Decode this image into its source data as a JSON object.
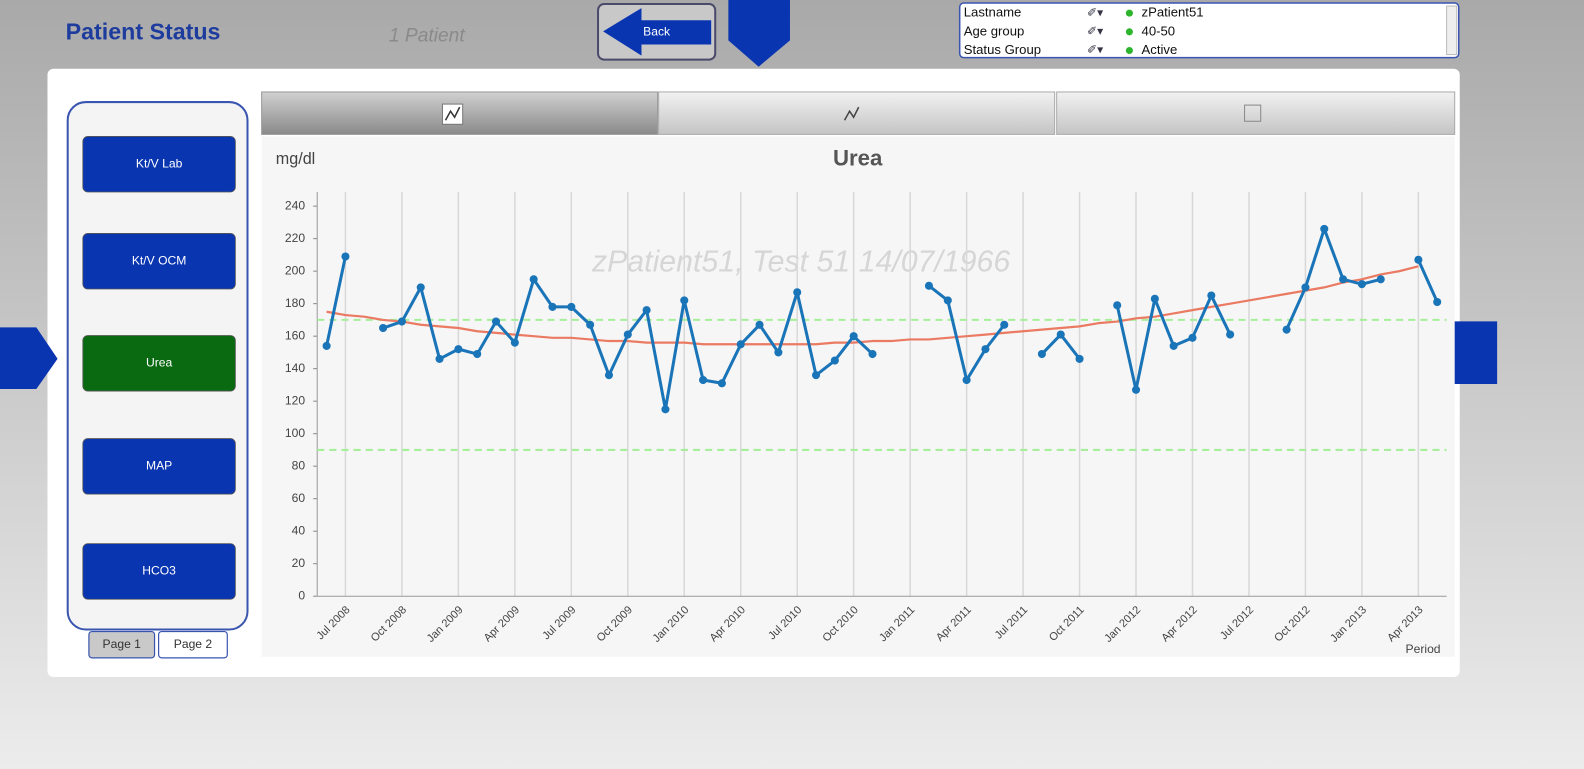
{
  "header": {
    "title": "Patient Status",
    "patient_count": "1 Patient",
    "back": "Back"
  },
  "selections": [
    {
      "field": "Lastname",
      "value": "zPatient51"
    },
    {
      "field": "Age group",
      "value": "40-50"
    },
    {
      "field": "Status Group",
      "value": "Active"
    }
  ],
  "nav": {
    "buttons": [
      "Kt/V Lab",
      "Kt/V OCM",
      "Urea",
      "MAP",
      "HCO3"
    ],
    "active": 2,
    "pages": [
      "Page 1",
      "Page 2"
    ]
  },
  "chart_data": {
    "type": "line",
    "title": "Urea",
    "y_label": "mg/dl",
    "x_label": "Period",
    "watermark": "zPatient51, Test 51 14/07/1966",
    "categories": [
      null,
      "Jul 2008",
      null,
      null,
      "Oct 2008",
      null,
      null,
      "Jan 2009",
      null,
      null,
      "Apr 2009",
      null,
      null,
      "Jul 2009",
      null,
      null,
      "Oct 2009",
      null,
      null,
      "Jan 2010",
      null,
      null,
      "Apr 2010",
      null,
      null,
      "Jul 2010",
      null,
      null,
      "Oct 2010",
      null,
      null,
      "Jan 2011",
      null,
      null,
      "Apr 2011",
      null,
      null,
      "Jul 2011",
      null,
      null,
      "Oct 2011",
      null,
      null,
      "Jan 2012",
      null,
      null,
      "Apr 2012",
      null,
      null,
      "Jul 2012",
      null,
      null,
      "Oct 2012",
      null,
      null,
      "Jan 2013",
      null,
      null,
      "Apr 2013",
      null
    ],
    "series": [
      {
        "color": "#1a74b8",
        "markers": true,
        "values": [
          154,
          209,
          null,
          165,
          169,
          190,
          146,
          152,
          149,
          169,
          156,
          195,
          178,
          178,
          167,
          136,
          161,
          176,
          115,
          182,
          133,
          131,
          155,
          167,
          150,
          187,
          136,
          145,
          160,
          149,
          null,
          null,
          191,
          182,
          133,
          152,
          167,
          null,
          149,
          161,
          146,
          null,
          179,
          127,
          183,
          154,
          159,
          185,
          161,
          null,
          null,
          164,
          190,
          226,
          195,
          192,
          195,
          null,
          207,
          181
        ]
      },
      {
        "color": "#ea7a62",
        "markers": false,
        "values": [
          175,
          173,
          172,
          170,
          169,
          167,
          166,
          165,
          163,
          162,
          161,
          160,
          159,
          159,
          158,
          157,
          157,
          156,
          156,
          156,
          155,
          155,
          155,
          155,
          155,
          155,
          155,
          156,
          156,
          157,
          157,
          158,
          158,
          159,
          160,
          161,
          162,
          163,
          164,
          165,
          166,
          168,
          169,
          171,
          172,
          174,
          176,
          178,
          180,
          182,
          184,
          186,
          188,
          190,
          193,
          195,
          198,
          200,
          203,
          null
        ]
      }
    ],
    "reference_lines": [
      170,
      90
    ],
    "reference_color": "#a6ee9a",
    "ylim": [
      0,
      240
    ],
    "yticks": [
      0,
      20,
      40,
      60,
      80,
      100,
      120,
      140,
      160,
      180,
      200,
      220,
      240
    ],
    "x_grid": true,
    "y_grid": false
  }
}
